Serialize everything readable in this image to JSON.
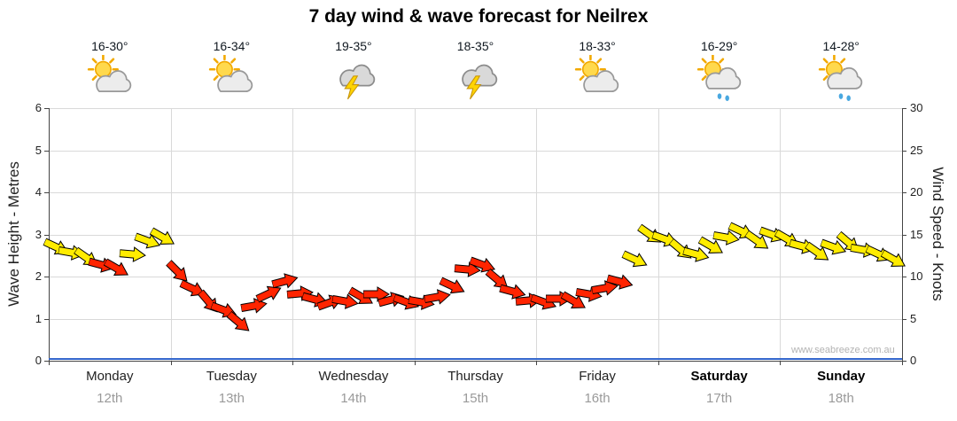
{
  "title": "7 day wind & wave forecast for Neilrex",
  "watermark": "www.seabreeze.com.au",
  "colors": {
    "wind_yellow": "#ffec00",
    "wind_red": "#ff2400",
    "wave_line": "#3366cc",
    "grid": "#d9d9d9",
    "axis": "#444444"
  },
  "days": [
    {
      "name": "Monday",
      "date": "12th",
      "temp": "16-30°",
      "icon": "sun-cloud",
      "bold": false
    },
    {
      "name": "Tuesday",
      "date": "13th",
      "temp": "16-34°",
      "icon": "sun-cloud",
      "bold": false
    },
    {
      "name": "Wednesday",
      "date": "14th",
      "temp": "19-35°",
      "icon": "storm",
      "bold": false
    },
    {
      "name": "Thursday",
      "date": "15th",
      "temp": "18-35°",
      "icon": "storm",
      "bold": false
    },
    {
      "name": "Friday",
      "date": "16th",
      "temp": "18-33°",
      "icon": "sun-cloud",
      "bold": false
    },
    {
      "name": "Saturday",
      "date": "17th",
      "temp": "16-29°",
      "icon": "sun-cloud-showers",
      "bold": true
    },
    {
      "name": "Sunday",
      "date": "18th",
      "temp": "14-28°",
      "icon": "sun-cloud-showers",
      "bold": true
    }
  ],
  "chart_data": {
    "type": "line",
    "title": "7 day wind & wave forecast for Neilrex",
    "x_categories": [
      "Monday 12th",
      "Tuesday 13th",
      "Wednesday 14th",
      "Thursday 15th",
      "Friday 16th",
      "Saturday 17th",
      "Sunday 18th"
    ],
    "y_left": {
      "label": "Wave Height - Metres",
      "range": [
        0,
        6
      ],
      "ticks": [
        0,
        1,
        2,
        3,
        4,
        5,
        6
      ]
    },
    "y_right": {
      "label": "Wind Speed - Knots",
      "range": [
        0,
        30
      ],
      "ticks": [
        0,
        5,
        10,
        15,
        20,
        25,
        30
      ]
    },
    "grid": true,
    "series": [
      {
        "name": "Wind Speed",
        "axis": "right",
        "units": "knots",
        "style": "direction-arrows",
        "points_per_day": 8,
        "point_format": [
          "knots",
          "direction_deg",
          "color_key"
        ],
        "color_keys": {
          "y": "#ffec00",
          "r": "#ff2400"
        },
        "points": [
          [
            13.5,
            25,
            "y"
          ],
          [
            12.8,
            10,
            "y"
          ],
          [
            12.2,
            35,
            "y"
          ],
          [
            11.4,
            15,
            "r"
          ],
          [
            11.0,
            30,
            "r"
          ],
          [
            12.6,
            5,
            "y"
          ],
          [
            14.2,
            20,
            "y"
          ],
          [
            14.6,
            30,
            "y"
          ],
          [
            10.5,
            45,
            "r"
          ],
          [
            8.5,
            25,
            "r"
          ],
          [
            7.0,
            50,
            "r"
          ],
          [
            6.0,
            20,
            "r"
          ],
          [
            4.5,
            40,
            "r"
          ],
          [
            6.5,
            -10,
            "r"
          ],
          [
            8.0,
            -25,
            "r"
          ],
          [
            9.5,
            -15,
            "r"
          ],
          [
            8.0,
            -5,
            "r"
          ],
          [
            7.3,
            15,
            "r"
          ],
          [
            6.9,
            -20,
            "r"
          ],
          [
            7.1,
            10,
            "r"
          ],
          [
            7.6,
            30,
            "r"
          ],
          [
            7.9,
            0,
            "r"
          ],
          [
            7.3,
            -15,
            "r"
          ],
          [
            6.9,
            20,
            "r"
          ],
          [
            7.0,
            10,
            "r"
          ],
          [
            7.6,
            -10,
            "r"
          ],
          [
            8.8,
            25,
            "r"
          ],
          [
            10.8,
            5,
            "r"
          ],
          [
            11.4,
            20,
            "r"
          ],
          [
            9.6,
            40,
            "r"
          ],
          [
            8.2,
            15,
            "r"
          ],
          [
            7.2,
            -5,
            "r"
          ],
          [
            7.0,
            20,
            "r"
          ],
          [
            7.4,
            0,
            "r"
          ],
          [
            7.1,
            30,
            "r"
          ],
          [
            7.9,
            10,
            "r"
          ],
          [
            8.6,
            -10,
            "r"
          ],
          [
            9.4,
            15,
            "r"
          ],
          [
            12.0,
            25,
            "y"
          ],
          [
            15.0,
            35,
            "y"
          ],
          [
            14.4,
            20,
            "y"
          ],
          [
            13.2,
            40,
            "y"
          ],
          [
            12.6,
            15,
            "y"
          ],
          [
            13.6,
            30,
            "y"
          ],
          [
            14.6,
            10,
            "y"
          ],
          [
            15.4,
            25,
            "y"
          ],
          [
            14.2,
            35,
            "y"
          ],
          [
            15.0,
            20,
            "y"
          ],
          [
            14.4,
            30,
            "y"
          ],
          [
            13.6,
            15,
            "y"
          ],
          [
            12.8,
            35,
            "y"
          ],
          [
            13.5,
            20,
            "y"
          ],
          [
            14.0,
            40,
            "y"
          ],
          [
            13.2,
            10,
            "y"
          ],
          [
            12.6,
            25,
            "y"
          ],
          [
            12.0,
            30,
            "y"
          ]
        ]
      },
      {
        "name": "Wave Height",
        "axis": "left",
        "units": "metres",
        "style": "line",
        "color": "#3366cc",
        "values": [
          0,
          0,
          0,
          0,
          0,
          0,
          0
        ]
      }
    ]
  }
}
